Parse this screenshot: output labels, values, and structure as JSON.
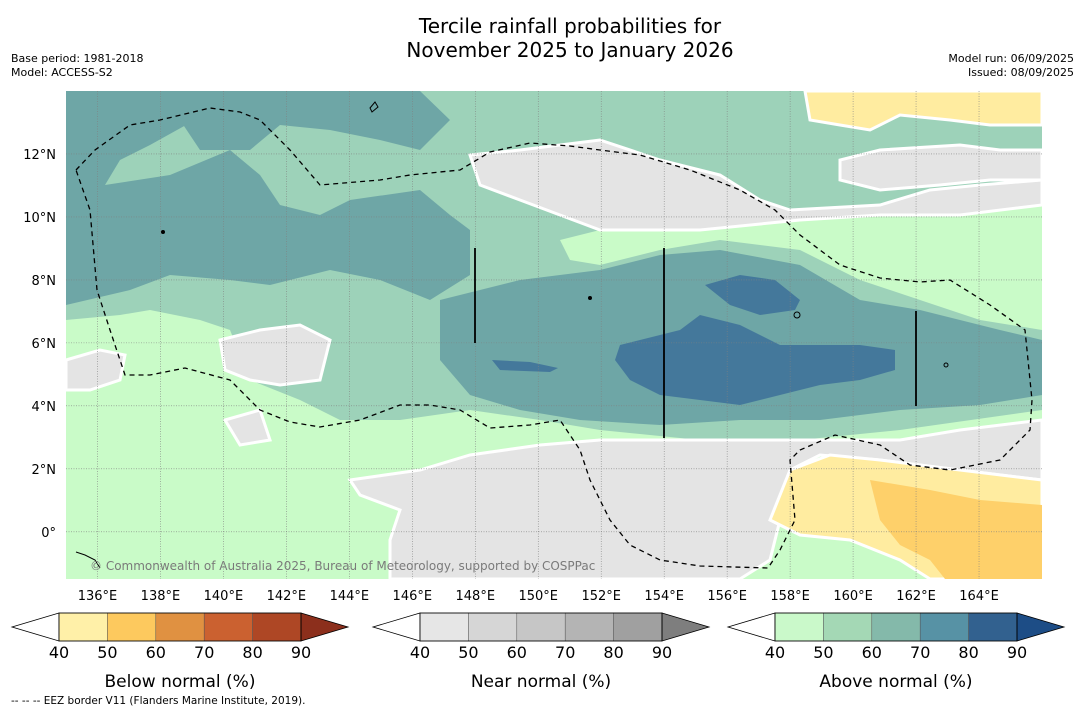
{
  "title_line1": "Tercile rainfall probabilities for",
  "title_line2": "November 2025 to January 2026",
  "meta_left": {
    "line1": "Base period: 1981-2018",
    "line2": "Model: ACCESS-S2"
  },
  "meta_right": {
    "line1": "Model run: 06/09/2025",
    "line2": "Issued: 08/09/2025"
  },
  "lon_labels": [
    "136°E",
    "138°E",
    "140°E",
    "142°E",
    "144°E",
    "146°E",
    "148°E",
    "150°E",
    "152°E",
    "154°E",
    "156°E",
    "158°E",
    "160°E",
    "162°E",
    "164°E"
  ],
  "lat_labels": [
    "12°N",
    "10°N",
    "8°N",
    "6°N",
    "4°N",
    "2°N",
    "0°"
  ],
  "map_extent": {
    "lon_min": 135,
    "lon_max": 166,
    "lat_min": -1.5,
    "lat_max": 14
  },
  "copyright": "© Commonwealth of Australia 2025, Bureau of Meteorology, supported by COSPPac",
  "colorbars": [
    {
      "label": "Below normal (%)",
      "ticks": [
        "40",
        "50",
        "60",
        "70",
        "80",
        "90"
      ],
      "colors": [
        "#fff0a8",
        "#fdc95e",
        "#e09141",
        "#cb6130",
        "#ae4725",
        "#8c2f1c"
      ]
    },
    {
      "label": "Near normal (%)",
      "ticks": [
        "40",
        "50",
        "60",
        "70",
        "80",
        "90"
      ],
      "colors": [
        "#e6e6e6",
        "#d6d6d6",
        "#c6c6c6",
        "#b4b4b4",
        "#a0a0a0",
        "#7e7e7e"
      ]
    },
    {
      "label": "Above normal (%)",
      "ticks": [
        "40",
        "50",
        "60",
        "70",
        "80",
        "90"
      ],
      "colors": [
        "#caf9ca",
        "#a4d8b5",
        "#84b9aa",
        "#5792a5",
        "#32618f",
        "#1d4d86"
      ]
    }
  ],
  "footer": "--  --  -- EEZ border V11 (Flanders Marine Institute, 2019).",
  "colors": {
    "above_50": "#c9fbc8",
    "above_60": "#9dd2b9",
    "above_70": "#6ea6a6",
    "above_80": "#44789b",
    "near_50": "#e4e4e4",
    "near_60": "#cfcfcf",
    "below_50": "#ffeca0",
    "below_60": "#fed06a"
  }
}
